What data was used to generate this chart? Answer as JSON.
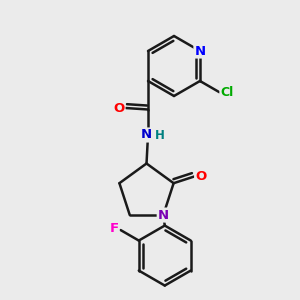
{
  "background_color": "#ebebeb",
  "bond_color": "#1a1a1a",
  "bond_width": 1.8,
  "atom_colors": {
    "N_pyridine": "#0000ff",
    "N_amide": "#0000cd",
    "N_lactam": "#7b00b4",
    "O": "#ff0000",
    "Cl": "#00aa00",
    "F": "#ff00cc",
    "H": "#008080"
  },
  "figsize": [
    3.0,
    3.0
  ],
  "dpi": 100,
  "xlim": [
    0,
    10
  ],
  "ylim": [
    0,
    10
  ]
}
